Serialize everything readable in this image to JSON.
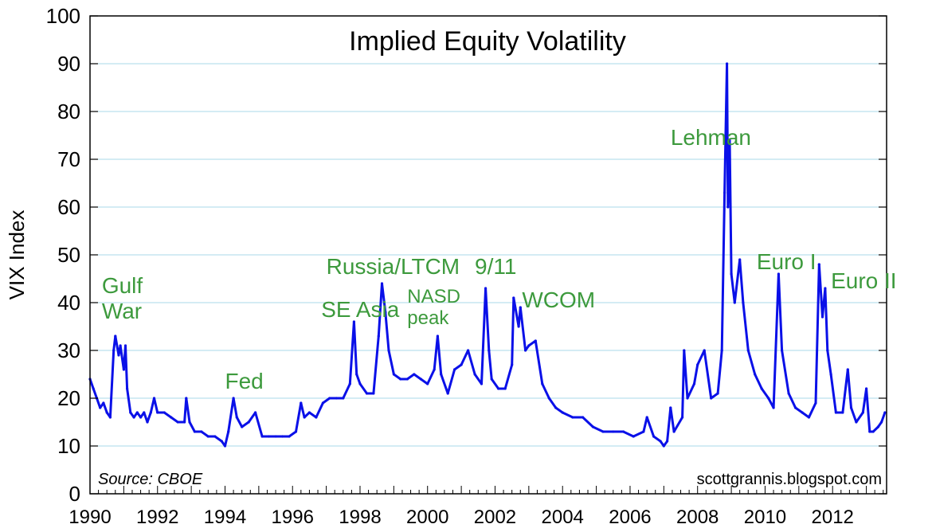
{
  "chart_data": {
    "type": "line",
    "title": "Implied Equity Volatility",
    "xlabel": "",
    "ylabel": "VIX Index",
    "xlim": [
      1990,
      2013.6
    ],
    "ylim": [
      0,
      100
    ],
    "y_ticks": [
      0,
      10,
      20,
      30,
      40,
      50,
      60,
      70,
      80,
      90,
      100
    ],
    "x_ticks": [
      "1990",
      "1992",
      "1994",
      "1996",
      "1998",
      "2000",
      "2002",
      "2004",
      "2006",
      "2008",
      "2010",
      "2012"
    ],
    "grid": true,
    "series": [
      {
        "name": "VIX Index",
        "color": "#0a10e8",
        "points": [
          [
            1990.0,
            24
          ],
          [
            1990.1,
            22
          ],
          [
            1990.2,
            20
          ],
          [
            1990.3,
            18
          ],
          [
            1990.4,
            19
          ],
          [
            1990.5,
            17
          ],
          [
            1990.6,
            16
          ],
          [
            1990.7,
            30
          ],
          [
            1990.75,
            33
          ],
          [
            1990.85,
            29
          ],
          [
            1990.9,
            31
          ],
          [
            1991.0,
            26
          ],
          [
            1991.05,
            31
          ],
          [
            1991.1,
            22
          ],
          [
            1991.2,
            17
          ],
          [
            1991.3,
            16
          ],
          [
            1991.4,
            17
          ],
          [
            1991.5,
            16
          ],
          [
            1991.6,
            17
          ],
          [
            1991.7,
            15
          ],
          [
            1991.8,
            17
          ],
          [
            1991.9,
            20
          ],
          [
            1992.0,
            17
          ],
          [
            1992.2,
            17
          ],
          [
            1992.4,
            16
          ],
          [
            1992.6,
            15
          ],
          [
            1992.8,
            15
          ],
          [
            1992.85,
            20
          ],
          [
            1992.95,
            15
          ],
          [
            1993.1,
            13
          ],
          [
            1993.3,
            13
          ],
          [
            1993.5,
            12
          ],
          [
            1993.7,
            12
          ],
          [
            1993.9,
            11
          ],
          [
            1994.0,
            10
          ],
          [
            1994.1,
            13
          ],
          [
            1994.25,
            20
          ],
          [
            1994.35,
            16
          ],
          [
            1994.5,
            14
          ],
          [
            1994.7,
            15
          ],
          [
            1994.9,
            17
          ],
          [
            1995.1,
            12
          ],
          [
            1995.3,
            12
          ],
          [
            1995.5,
            12
          ],
          [
            1995.7,
            12
          ],
          [
            1995.9,
            12
          ],
          [
            1996.1,
            13
          ],
          [
            1996.25,
            19
          ],
          [
            1996.35,
            16
          ],
          [
            1996.5,
            17
          ],
          [
            1996.7,
            16
          ],
          [
            1996.9,
            19
          ],
          [
            1997.1,
            20
          ],
          [
            1997.3,
            20
          ],
          [
            1997.5,
            20
          ],
          [
            1997.7,
            23
          ],
          [
            1997.82,
            36
          ],
          [
            1997.9,
            25
          ],
          [
            1998.0,
            23
          ],
          [
            1998.2,
            21
          ],
          [
            1998.4,
            21
          ],
          [
            1998.55,
            33
          ],
          [
            1998.65,
            44
          ],
          [
            1998.75,
            38
          ],
          [
            1998.85,
            30
          ],
          [
            1999.0,
            25
          ],
          [
            1999.2,
            24
          ],
          [
            1999.4,
            24
          ],
          [
            1999.6,
            25
          ],
          [
            1999.8,
            24
          ],
          [
            2000.0,
            23
          ],
          [
            2000.2,
            26
          ],
          [
            2000.3,
            33
          ],
          [
            2000.4,
            25
          ],
          [
            2000.6,
            21
          ],
          [
            2000.8,
            26
          ],
          [
            2001.0,
            27
          ],
          [
            2001.2,
            30
          ],
          [
            2001.4,
            25
          ],
          [
            2001.6,
            23
          ],
          [
            2001.72,
            43
          ],
          [
            2001.82,
            30
          ],
          [
            2001.9,
            24
          ],
          [
            2002.1,
            22
          ],
          [
            2002.3,
            22
          ],
          [
            2002.5,
            27
          ],
          [
            2002.55,
            41
          ],
          [
            2002.7,
            35
          ],
          [
            2002.75,
            39
          ],
          [
            2002.9,
            30
          ],
          [
            2003.0,
            31
          ],
          [
            2003.2,
            32
          ],
          [
            2003.4,
            23
          ],
          [
            2003.6,
            20
          ],
          [
            2003.8,
            18
          ],
          [
            2004.0,
            17
          ],
          [
            2004.3,
            16
          ],
          [
            2004.6,
            16
          ],
          [
            2004.9,
            14
          ],
          [
            2005.2,
            13
          ],
          [
            2005.5,
            13
          ],
          [
            2005.8,
            13
          ],
          [
            2006.1,
            12
          ],
          [
            2006.4,
            13
          ],
          [
            2006.5,
            16
          ],
          [
            2006.7,
            12
          ],
          [
            2006.9,
            11
          ],
          [
            2007.0,
            10
          ],
          [
            2007.1,
            11
          ],
          [
            2007.2,
            18
          ],
          [
            2007.3,
            13
          ],
          [
            2007.55,
            16
          ],
          [
            2007.6,
            30
          ],
          [
            2007.7,
            20
          ],
          [
            2007.9,
            23
          ],
          [
            2008.0,
            27
          ],
          [
            2008.2,
            30
          ],
          [
            2008.4,
            20
          ],
          [
            2008.6,
            21
          ],
          [
            2008.72,
            30
          ],
          [
            2008.8,
            63
          ],
          [
            2008.87,
            90
          ],
          [
            2008.9,
            60
          ],
          [
            2008.95,
            74
          ],
          [
            2009.0,
            46
          ],
          [
            2009.1,
            40
          ],
          [
            2009.25,
            49
          ],
          [
            2009.35,
            40
          ],
          [
            2009.5,
            30
          ],
          [
            2009.7,
            25
          ],
          [
            2009.9,
            22
          ],
          [
            2010.1,
            20
          ],
          [
            2010.25,
            18
          ],
          [
            2010.4,
            46
          ],
          [
            2010.5,
            30
          ],
          [
            2010.7,
            21
          ],
          [
            2010.9,
            18
          ],
          [
            2011.1,
            17
          ],
          [
            2011.3,
            16
          ],
          [
            2011.5,
            19
          ],
          [
            2011.6,
            48
          ],
          [
            2011.7,
            37
          ],
          [
            2011.78,
            43
          ],
          [
            2011.85,
            30
          ],
          [
            2011.95,
            25
          ],
          [
            2012.1,
            17
          ],
          [
            2012.3,
            17
          ],
          [
            2012.45,
            26
          ],
          [
            2012.55,
            18
          ],
          [
            2012.7,
            15
          ],
          [
            2012.9,
            17
          ],
          [
            2013.0,
            22
          ],
          [
            2013.1,
            13
          ],
          [
            2013.2,
            13
          ],
          [
            2013.35,
            14
          ],
          [
            2013.45,
            15
          ],
          [
            2013.55,
            17
          ]
        ]
      }
    ],
    "annotations": [
      {
        "lines": [
          "Gulf",
          "War"
        ],
        "x": 1990.35,
        "y": 42
      },
      {
        "lines": [
          "Fed"
        ],
        "x": 1994.0,
        "y": 22
      },
      {
        "lines": [
          "SE Asia"
        ],
        "x": 1996.85,
        "y": 37
      },
      {
        "lines": [
          "Russia/LTCM"
        ],
        "x": 1997.0,
        "y": 46
      },
      {
        "lines": [
          "NASD",
          "peak"
        ],
        "x": 1999.4,
        "y": 40,
        "small": true
      },
      {
        "lines": [
          "9/11"
        ],
        "x": 2001.4,
        "y": 46
      },
      {
        "lines": [
          "WCOM"
        ],
        "x": 2002.8,
        "y": 39
      },
      {
        "lines": [
          "Lehman"
        ],
        "x": 2007.2,
        "y": 73
      },
      {
        "lines": [
          "Euro I"
        ],
        "x": 2009.75,
        "y": 47
      },
      {
        "lines": [
          "Euro II"
        ],
        "x": 2011.95,
        "y": 43
      }
    ]
  },
  "source_note": "Source: CBOE",
  "credit": "scottgrannis.blogspot.com",
  "colors": {
    "line": "#0a10e8",
    "annotation": "#3d9a3d",
    "grid": "#a8d8e8"
  }
}
